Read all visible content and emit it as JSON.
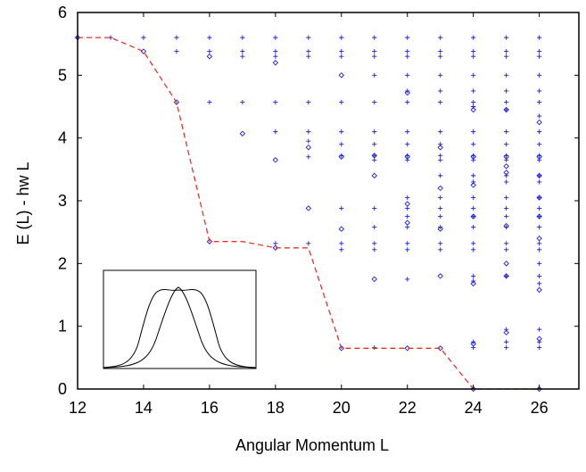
{
  "chart_data": {
    "type": "scatter",
    "title": "",
    "xlabel": "Angular Momentum L",
    "ylabel": "E (L) - hw L",
    "xlim": [
      12,
      27.2
    ],
    "ylim": [
      0,
      6
    ],
    "xticks": [
      12,
      14,
      16,
      18,
      20,
      22,
      24,
      26
    ],
    "yticks": [
      0,
      1,
      2,
      3,
      4,
      5,
      6
    ],
    "grid": false,
    "legend": "none",
    "colors": {
      "markers": "#1f1fd6",
      "yrast": "#e8332b",
      "frame": "#000000"
    },
    "plus_points": [
      [
        12,
        5.6
      ],
      [
        13,
        5.6
      ],
      [
        14,
        5.6
      ],
      [
        15,
        5.6
      ],
      [
        16,
        5.6
      ],
      [
        17,
        5.6
      ],
      [
        18,
        5.6
      ],
      [
        19,
        5.6
      ],
      [
        20,
        5.6
      ],
      [
        21,
        5.6
      ],
      [
        22,
        5.6
      ],
      [
        23,
        5.6
      ],
      [
        24,
        5.6
      ],
      [
        25,
        5.6
      ],
      [
        26,
        5.6
      ],
      [
        15,
        5.38
      ],
      [
        16,
        5.38
      ],
      [
        17,
        5.38
      ],
      [
        18,
        5.38
      ],
      [
        19,
        5.38
      ],
      [
        20,
        5.38
      ],
      [
        21,
        5.38
      ],
      [
        22,
        5.38
      ],
      [
        23,
        5.38
      ],
      [
        24,
        5.38
      ],
      [
        25,
        5.38
      ],
      [
        26,
        5.38
      ],
      [
        17,
        5.3
      ],
      [
        18,
        5.3
      ],
      [
        19,
        5.3
      ],
      [
        20,
        5.3
      ],
      [
        21,
        5.3
      ],
      [
        22,
        5.3
      ],
      [
        23,
        5.3
      ],
      [
        24,
        5.3
      ],
      [
        25,
        5.3
      ],
      [
        26,
        5.3
      ],
      [
        21,
        5.0
      ],
      [
        22,
        5.0
      ],
      [
        23,
        5.0
      ],
      [
        24,
        5.0
      ],
      [
        25,
        5.0
      ],
      [
        26,
        5.0
      ],
      [
        22,
        4.75
      ],
      [
        23,
        4.75
      ],
      [
        24,
        4.75
      ],
      [
        25,
        4.75
      ],
      [
        26,
        4.75
      ],
      [
        16,
        4.57
      ],
      [
        17,
        4.57
      ],
      [
        18,
        4.57
      ],
      [
        19,
        4.57
      ],
      [
        20,
        4.57
      ],
      [
        21,
        4.57
      ],
      [
        22,
        4.57
      ],
      [
        23,
        4.57
      ],
      [
        24,
        4.57
      ],
      [
        25,
        4.57
      ],
      [
        26,
        4.57
      ],
      [
        24,
        4.5
      ],
      [
        25,
        4.45
      ],
      [
        26,
        4.35
      ],
      [
        18,
        4.1
      ],
      [
        19,
        4.1
      ],
      [
        20,
        4.1
      ],
      [
        21,
        4.1
      ],
      [
        22,
        4.1
      ],
      [
        23,
        4.1
      ],
      [
        24,
        4.1
      ],
      [
        25,
        4.1
      ],
      [
        26,
        4.1
      ],
      [
        19,
        3.95
      ],
      [
        20,
        3.9
      ],
      [
        21,
        3.9
      ],
      [
        22,
        3.9
      ],
      [
        23,
        3.9
      ],
      [
        24,
        3.9
      ],
      [
        25,
        3.9
      ],
      [
        26,
        3.9
      ],
      [
        19,
        3.7
      ],
      [
        20,
        3.72
      ],
      [
        21,
        3.72
      ],
      [
        22,
        3.72
      ],
      [
        23,
        3.72
      ],
      [
        24,
        3.72
      ],
      [
        25,
        3.72
      ],
      [
        26,
        3.72
      ],
      [
        21,
        3.65
      ],
      [
        22,
        3.65
      ],
      [
        23,
        3.65
      ],
      [
        24,
        3.65
      ],
      [
        25,
        3.65
      ],
      [
        26,
        3.65
      ],
      [
        23,
        3.4
      ],
      [
        24,
        3.4
      ],
      [
        25,
        3.4
      ],
      [
        26,
        3.4
      ],
      [
        24,
        3.3
      ],
      [
        25,
        3.3
      ],
      [
        26,
        3.3
      ],
      [
        22,
        3.05
      ],
      [
        23,
        3.05
      ],
      [
        24,
        3.05
      ],
      [
        25,
        3.05
      ],
      [
        26,
        3.05
      ],
      [
        20,
        2.88
      ],
      [
        21,
        2.88
      ],
      [
        22,
        2.88
      ],
      [
        23,
        2.88
      ],
      [
        24,
        2.88
      ],
      [
        25,
        2.88
      ],
      [
        26,
        2.88
      ],
      [
        22,
        2.75
      ],
      [
        23,
        2.75
      ],
      [
        24,
        2.75
      ],
      [
        25,
        2.75
      ],
      [
        26,
        2.75
      ],
      [
        21,
        2.58
      ],
      [
        22,
        2.58
      ],
      [
        23,
        2.58
      ],
      [
        24,
        2.58
      ],
      [
        25,
        2.58
      ],
      [
        26,
        2.58
      ],
      [
        18,
        2.32
      ],
      [
        19,
        2.32
      ],
      [
        20,
        2.32
      ],
      [
        21,
        2.32
      ],
      [
        22,
        2.32
      ],
      [
        23,
        2.32
      ],
      [
        24,
        2.32
      ],
      [
        25,
        2.32
      ],
      [
        26,
        2.32
      ],
      [
        20,
        2.22
      ],
      [
        21,
        2.22
      ],
      [
        22,
        2.22
      ],
      [
        23,
        2.22
      ],
      [
        24,
        2.22
      ],
      [
        25,
        2.22
      ],
      [
        26,
        2.22
      ],
      [
        26,
        2.0
      ],
      [
        24,
        1.8
      ],
      [
        25,
        1.8
      ],
      [
        26,
        1.8
      ],
      [
        22,
        1.75
      ],
      [
        24,
        1.72
      ],
      [
        26,
        1.68
      ],
      [
        25,
        0.95
      ],
      [
        26,
        0.95
      ],
      [
        24,
        0.75
      ],
      [
        25,
        0.75
      ],
      [
        26,
        0.75
      ],
      [
        21,
        0.66
      ],
      [
        24,
        0.66
      ],
      [
        25,
        0.66
      ],
      [
        26,
        0.66
      ]
    ],
    "diamond_points": [
      [
        12,
        5.6
      ],
      [
        14,
        5.38
      ],
      [
        16,
        5.3
      ],
      [
        18,
        5.2
      ],
      [
        20,
        5.0
      ],
      [
        22,
        4.72
      ],
      [
        24,
        4.45
      ],
      [
        25,
        4.45
      ],
      [
        26,
        4.25
      ],
      [
        15,
        4.57
      ],
      [
        17,
        4.07
      ],
      [
        19,
        3.85
      ],
      [
        18,
        3.65
      ],
      [
        20,
        3.7
      ],
      [
        21,
        3.72
      ],
      [
        22,
        3.7
      ],
      [
        23,
        3.85
      ],
      [
        24,
        3.7
      ],
      [
        25,
        3.7
      ],
      [
        26,
        3.7
      ],
      [
        25,
        3.55
      ],
      [
        21,
        3.4
      ],
      [
        25,
        3.45
      ],
      [
        26,
        3.4
      ],
      [
        24,
        3.25
      ],
      [
        23,
        3.2
      ],
      [
        26,
        3.05
      ],
      [
        22,
        2.95
      ],
      [
        19,
        2.88
      ],
      [
        24,
        2.75
      ],
      [
        26,
        2.75
      ],
      [
        25,
        2.6
      ],
      [
        22,
        2.65
      ],
      [
        20,
        2.55
      ],
      [
        23,
        2.55
      ],
      [
        26,
        2.4
      ],
      [
        16,
        2.35
      ],
      [
        18,
        2.25
      ],
      [
        25,
        2.0
      ],
      [
        25,
        1.8
      ],
      [
        21,
        1.75
      ],
      [
        23,
        1.8
      ],
      [
        24,
        1.68
      ],
      [
        26,
        1.58
      ],
      [
        25,
        0.9
      ],
      [
        24,
        0.72
      ],
      [
        26,
        0.8
      ],
      [
        20,
        0.65
      ],
      [
        22,
        0.65
      ],
      [
        23,
        0.65
      ],
      [
        24,
        0.0
      ],
      [
        26,
        0.0
      ]
    ],
    "yrast_line": [
      [
        12,
        5.6
      ],
      [
        13,
        5.6
      ],
      [
        14,
        5.38
      ],
      [
        15,
        4.57
      ],
      [
        16,
        2.35
      ],
      [
        17,
        2.35
      ],
      [
        18,
        2.25
      ],
      [
        19,
        2.25
      ],
      [
        20,
        0.65
      ],
      [
        21,
        0.65
      ],
      [
        22,
        0.65
      ],
      [
        23,
        0.65
      ],
      [
        24,
        0.0
      ],
      [
        25,
        0.0
      ],
      [
        26,
        0.0
      ]
    ]
  }
}
